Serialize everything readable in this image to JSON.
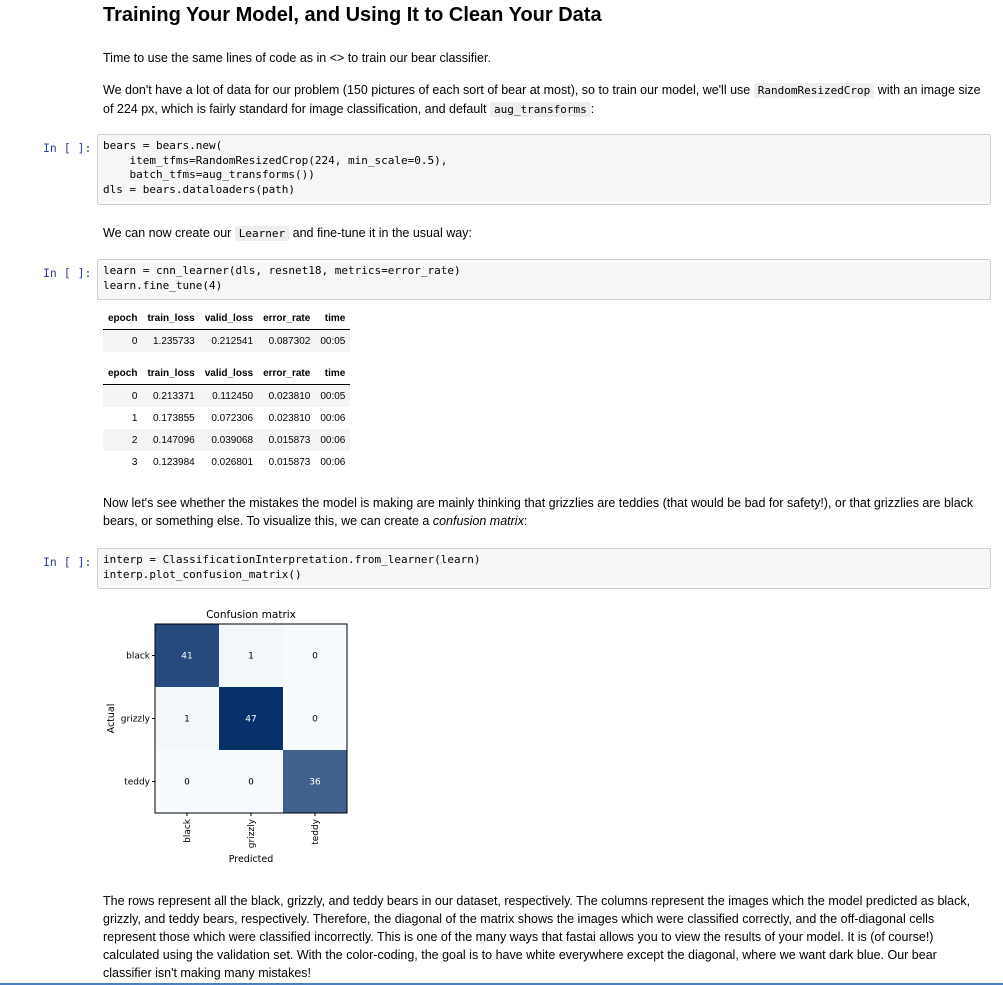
{
  "title": "Training Your Model, and Using It to Clean Your Data",
  "para1": "Time to use the same lines of code as in <> to train our bear classifier.",
  "para2": {
    "a": "We don't have a lot of data for our problem (150 pictures of each sort of bear at most), so to train our model, we'll use ",
    "code1": "RandomResizedCrop",
    "b": " with an image size of 224 px, which is fairly standard for image classification, and default ",
    "code2": "aug_transforms",
    "c": ":"
  },
  "prompt_label": "In [ ]:",
  "cell1_code": "bears = bears.new(\n    item_tfms=RandomResizedCrop(224, min_scale=0.5),\n    batch_tfms=aug_transforms())\ndls = bears.dataloaders(path)",
  "para3": {
    "a": "We can now create our ",
    "code": "Learner",
    "b": " and fine-tune it in the usual way:"
  },
  "cell2_code": "learn = cnn_learner(dls, resnet18, metrics=error_rate)\nlearn.fine_tune(4)",
  "table1": {
    "headers": [
      "epoch",
      "train_loss",
      "valid_loss",
      "error_rate",
      "time"
    ],
    "rows": [
      [
        "0",
        "1.235733",
        "0.212541",
        "0.087302",
        "00:05"
      ]
    ]
  },
  "table2": {
    "headers": [
      "epoch",
      "train_loss",
      "valid_loss",
      "error_rate",
      "time"
    ],
    "rows": [
      [
        "0",
        "0.213371",
        "0.112450",
        "0.023810",
        "00:05"
      ],
      [
        "1",
        "0.173855",
        "0.072306",
        "0.023810",
        "00:06"
      ],
      [
        "2",
        "0.147096",
        "0.039068",
        "0.015873",
        "00:06"
      ],
      [
        "3",
        "0.123984",
        "0.026801",
        "0.015873",
        "00:06"
      ]
    ]
  },
  "para4": {
    "a": "Now let's see whether the mistakes the model is making are mainly thinking that grizzlies are teddies (that would be bad for safety!), or that grizzlies are black bears, or something else. To visualize this, we can create a ",
    "em": "confusion matrix",
    "b": ":"
  },
  "cell3_code": "interp = ClassificationInterpretation.from_learner(learn)\ninterp.plot_confusion_matrix()",
  "chart_data": {
    "type": "heatmap",
    "title": "Confusion matrix",
    "xlabel": "Predicted",
    "ylabel": "Actual",
    "rows": [
      "black",
      "grizzly",
      "teddy"
    ],
    "cols": [
      "black",
      "grizzly",
      "teddy"
    ],
    "values": [
      [
        41,
        1,
        0
      ],
      [
        1,
        47,
        0
      ],
      [
        0,
        0,
        36
      ]
    ],
    "colormap": "Blues"
  },
  "para5": "The rows represent all the black, grizzly, and teddy bears in our dataset, respectively. The columns represent the images which the model predicted as black, grizzly, and teddy bears, respectively. Therefore, the diagonal of the matrix shows the images which were classified correctly, and the off-diagonal cells represent those which were classified incorrectly. This is one of the many ways that fastai allows you to view the results of your model. It is (of course!) calculated using the validation set. With the color-coding, the goal is to have white everywhere except the diagonal, where we want dark blue. Our bear classifier isn't making many mistakes!",
  "colors": {
    "prompt": "#303f9f",
    "accent_bar": "#4a7fc1",
    "cell_bg": "#f7f7f7",
    "cell_border": "#cfcfcf"
  }
}
